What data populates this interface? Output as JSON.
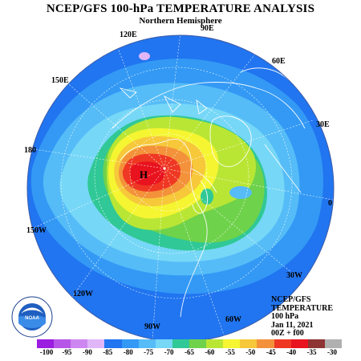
{
  "title": "NCEP/GFS 100-hPa TEMPERATURE ANALYSIS",
  "subtitle": "Northern Hemisphere",
  "longitude_labels": [
    "120E",
    "90E",
    "60E",
    "150E",
    "30E",
    "180",
    "0",
    "150W",
    "30W",
    "120W",
    "60W",
    "90W"
  ],
  "high_marker": "H",
  "info_block": {
    "line1": "NCEP/GFS",
    "line2": "TEMPERATURE",
    "line3": "100 hPa",
    "line4": "Jan 11, 2021",
    "line5": "00Z + f00"
  },
  "logo": {
    "name": "noaa-logo",
    "text": "NOAA",
    "ring_text": "NATIONAL OCEANIC AND ATMOSPHERIC ADMINISTRATION U.S. DEPARTMENT OF COMMERCE"
  },
  "color_scale": {
    "labels": [
      "-100",
      "-95",
      "-90",
      "-85",
      "-80",
      "-75",
      "-70",
      "-65",
      "-60",
      "-55",
      "-50",
      "-45",
      "-40",
      "-35",
      "-30"
    ],
    "colors": [
      "#9b1de0",
      "#b655e8",
      "#cc88f0",
      "#e0b6f8",
      "#2175f0",
      "#3399f5",
      "#55bcf7",
      "#77d7f7",
      "#30c896",
      "#6fd24b",
      "#b9e635",
      "#f5f531",
      "#f6c83a",
      "#f3923a",
      "#ef3824",
      "#e8131e",
      "#8e3434",
      "#b0b0b0"
    ]
  }
}
